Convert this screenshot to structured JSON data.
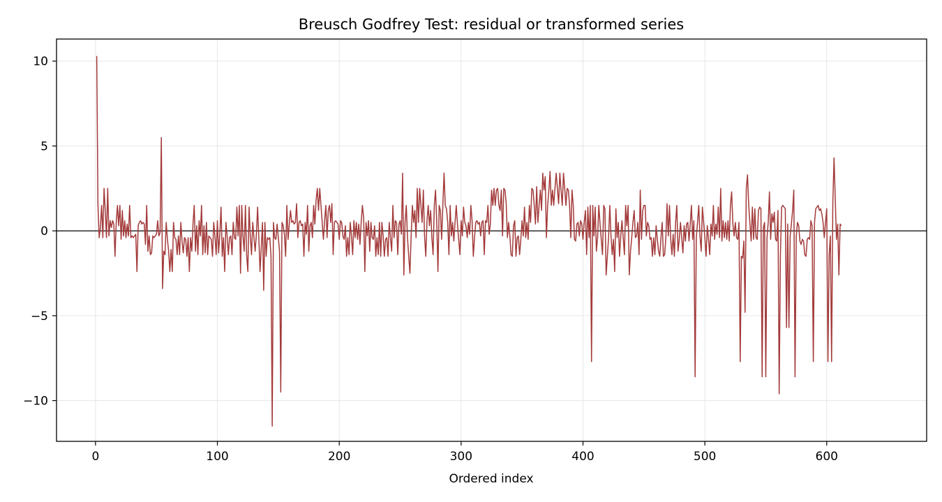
{
  "chart_data": {
    "type": "line",
    "title": "Breusch Godfrey Test: residual or transformed series",
    "xlabel": "Ordered index",
    "ylabel": "",
    "xlim": [
      -32,
      682
    ],
    "ylim": [
      -12.4,
      11.3
    ],
    "x_ticks": [
      0,
      100,
      200,
      300,
      400,
      500,
      600
    ],
    "y_ticks": [
      10,
      5,
      0,
      -5,
      -10
    ],
    "y_tick_labels": [
      "10",
      "5",
      "0",
      "−5",
      "−10"
    ],
    "grid": true,
    "reference_line_y": 0,
    "line_color": "#a33a3a",
    "series": [
      {
        "x_start": 1,
        "x_step": 1,
        "values": [
          10.3,
          1.5,
          -0.4,
          0.2,
          1.5,
          -0.4,
          2.5,
          1.2,
          -0.4,
          2.5,
          -0.3,
          0.6,
          0.2,
          0.6,
          0.4,
          -1.5,
          0.5,
          1.5,
          0.3,
          1.5,
          -0.5,
          1.2,
          -0.3,
          0.6,
          -0.4,
          0.4,
          -0.3,
          1.5,
          -0.4,
          -0.3,
          -0.4,
          -0.3,
          -0.2,
          -2.4,
          0.3,
          0.5,
          0.6,
          0.4,
          0.5,
          0.4,
          -0.8,
          1.5,
          -1.2,
          -0.3,
          -1.4,
          -1.3,
          -0.3,
          -0.4,
          -0.3,
          -0.2,
          0.6,
          -0.3,
          -0.1,
          5.5,
          -3.4,
          -1.2,
          -1.4,
          0.5,
          -0.5,
          -1.2,
          -2.4,
          -1.1,
          -2.4,
          0.5,
          -0.4,
          -0.5,
          -1.4,
          -0.3,
          -1.4,
          0.5,
          -0.6,
          -1.3,
          -0.4,
          -0.5,
          -1.5,
          -0.4,
          -2.4,
          -0.4,
          -1.2,
          0.4,
          1.5,
          -1.2,
          0.3,
          -1.4,
          0.6,
          -0.3,
          1.5,
          -1.4,
          0.3,
          -1.3,
          0.5,
          -1.4,
          -0.3,
          -0.4,
          -0.5,
          -1.5,
          0.5,
          -0.3,
          -1.4,
          0.6,
          -1.3,
          -0.2,
          1.4,
          -1.5,
          -0.4,
          -2.4,
          0.5,
          -0.3,
          -1.4,
          -0.4,
          -0.3,
          -1.4,
          0.5,
          -0.4,
          -0.5,
          1.4,
          -0.3,
          1.5,
          -2.5,
          1.5,
          -0.3,
          -1.2,
          1.5,
          -1.4,
          -2.4,
          1.4,
          -0.3,
          -1.4,
          0.5,
          -0.4,
          -1.2,
          -0.2,
          1.4,
          -0.4,
          -2.4,
          -1.0,
          0.5,
          -3.5,
          0.5,
          -1.5,
          -0.4,
          -0.5,
          -0.4,
          -1.5,
          -11.5,
          0.5,
          -0.4,
          -0.5,
          0.4,
          -0.4,
          -1.2,
          -9.5,
          0.5,
          0.3,
          -0.2,
          -1.5,
          1.5,
          -0.5,
          0.4,
          1.2,
          0.5,
          0.6,
          0.4,
          0.5,
          1.6,
          -0.4,
          0.5,
          0.6,
          0.3,
          0.4,
          -1.5,
          0.5,
          -0.2,
          1.5,
          -1.2,
          0.3,
          0.5,
          -0.4,
          1.5,
          0.4,
          1.8,
          2.5,
          1.2,
          2.5,
          1.5,
          0.5,
          -0.5,
          0.6,
          1.5,
          -0.4,
          1.2,
          1.5,
          0.5,
          1.6,
          -1.4,
          0.5,
          0.6,
          0.5,
          0.4,
          -0.5,
          0.6,
          0.5,
          -0.3,
          -0.5,
          0.3,
          -1.5,
          -0.4,
          -1.4,
          0.5,
          -0.3,
          -1.4,
          0.6,
          -0.4,
          0.5,
          -0.5,
          0.4,
          -0.8,
          0.5,
          1.5,
          0.8,
          -2.4,
          0.5,
          -0.3,
          0.6,
          -1.2,
          0.5,
          -0.4,
          -0.5,
          0.3,
          -1.5,
          -0.4,
          -1.4,
          0.5,
          -1.5,
          0.5,
          -0.3,
          -1.5,
          -0.5,
          -0.4,
          -1.5,
          0.5,
          -0.4,
          -1.2,
          1.5,
          -0.4,
          0.6,
          0.5,
          -1.4,
          0.4,
          0.6,
          -0.2,
          3.4,
          -2.6,
          0.5,
          1.5,
          -0.4,
          -1.5,
          -2.5,
          -0.3,
          1.5,
          0.5,
          1.2,
          -0.4,
          2.5,
          0.5,
          2.5,
          1.5,
          0.5,
          2.4,
          -0.3,
          -1.5,
          0.6,
          1.5,
          0.3,
          1.2,
          -0.4,
          -1.4,
          1.5,
          2.4,
          0.5,
          -2.4,
          1.5,
          1.2,
          -0.5,
          1.5,
          3.4,
          1.5,
          1.3,
          0.5,
          -1.4,
          1.5,
          -0.3,
          0.5,
          -0.6,
          0.5,
          1.5,
          0.4,
          -0.5,
          -1.4,
          0.6,
          -0.3,
          1.4,
          0.5,
          0.3,
          -0.4,
          0.5,
          -0.2,
          1.5,
          0.6,
          -1.5,
          -0.4,
          0.5,
          0.6,
          0.4,
          0.5,
          -0.3,
          0.5,
          0.6,
          -1.4,
          0.6,
          0.5,
          1.5,
          -0.2,
          0.4,
          2.4,
          1.5,
          2.5,
          1.5,
          2.4,
          2.5,
          1.5,
          1.2,
          2.4,
          -0.3,
          2.5,
          2.4,
          1.6,
          -0.4,
          0.5,
          -0.3,
          -1.4,
          -1.5,
          0.3,
          0.6,
          -1.5,
          -0.4,
          -0.3,
          -1.4,
          -0.5,
          0.6,
          -0.3,
          1.4,
          -0.4,
          0.5,
          -0.5,
          1.5,
          0.5,
          2.5,
          2.4,
          1.5,
          0.4,
          2.6,
          0.5,
          1.5,
          2.4,
          1.2,
          3.4,
          2.4,
          3.2,
          -0.4,
          1.5,
          2.4,
          3.5,
          1.5,
          2.4,
          1.5,
          2.5,
          3.4,
          2.5,
          1.6,
          3.4,
          2.4,
          1.5,
          3.4,
          2.5,
          1.5,
          2.5,
          2.4,
          1.5,
          -0.4,
          2.4,
          1.5,
          -0.5,
          -0.6,
          0.4,
          0.5,
          -0.3,
          0.6,
          0.4,
          -0.5,
          0.5,
          1.2,
          -1.4,
          1.4,
          -0.4,
          1.5,
          -7.7,
          1.5,
          -0.3,
          1.4,
          -1.2,
          -0.4,
          1.5,
          0.4,
          -0.5,
          -1.4,
          1.5,
          1.3,
          -2.6,
          -1.5,
          -0.4,
          1.5,
          -0.3,
          -1.4,
          -0.5,
          -2.4,
          1.3,
          -0.4,
          0.5,
          -1.5,
          -0.3,
          0.6,
          -0.4,
          -1.4,
          1.5,
          0.3,
          1.5,
          -2.6,
          -1.2,
          -0.4,
          0.5,
          1.2,
          -0.4,
          -0.3,
          0.5,
          -1.4,
          2.4,
          -0.5,
          1.2,
          1.5,
          1.5,
          -0.3,
          0.5,
          0.3,
          -0.5,
          -0.4,
          -1.5,
          -0.4,
          -1.4,
          0.3,
          -0.5,
          -1.2,
          -1.5,
          -0.4,
          0.5,
          -1.5,
          -1.4,
          -0.4,
          1.6,
          -0.3,
          1.5,
          -0.5,
          -1.4,
          -0.2,
          -1.5,
          0.5,
          1.5,
          -1.2,
          -0.5,
          0.5,
          -0.4,
          -1.3,
          0.3,
          -0.6,
          0.4,
          0.5,
          -0.6,
          0.4,
          1.5,
          -0.5,
          0.6,
          -8.6,
          -0.4,
          0.5,
          1.5,
          -0.3,
          -1.2,
          1.4,
          0.5,
          -0.4,
          -1.5,
          0.3,
          -0.5,
          -1.4,
          0.4,
          -0.3,
          1.5,
          -0.5,
          0.4,
          -0.2,
          1.4,
          -0.4,
          2.5,
          -0.6,
          0.6,
          -0.4,
          0.5,
          -0.5,
          0.6,
          -0.6,
          1.5,
          2.3,
          0.4,
          -0.3,
          0.5,
          -0.4,
          -0.5,
          0.5,
          -7.7,
          -1.5,
          -1.6,
          -0.6,
          -4.8,
          2.5,
          3.3,
          1.5,
          0.4,
          -0.6,
          1.4,
          -0.5,
          1.3,
          -0.4,
          -0.5,
          1.2,
          1.4,
          1.3,
          -8.6,
          0.2,
          0.5,
          -8.6,
          -0.4,
          0.5,
          2.3,
          -0.5,
          1.0,
          0.5,
          1.1,
          -0.5,
          -0.6,
          1.2,
          -9.6,
          -1.4,
          1.4,
          1.5,
          1.4,
          1.3,
          -5.7,
          0.4,
          -5.7,
          -0.3,
          0.4,
          1.2,
          2.4,
          -8.6,
          -0.3,
          0.5,
          0.3,
          -0.6,
          -0.8,
          -0.5,
          -0.6,
          -1.4,
          -1.5,
          -0.5,
          -0.4,
          -0.5,
          0.6,
          0.3,
          -7.7,
          0.5,
          1.3,
          1.4,
          1.5,
          1.2,
          1.3,
          1.0,
          0.5,
          -0.4,
          0.5,
          1.3,
          -7.7,
          -1.4,
          -0.3,
          -7.7,
          1.6,
          4.3,
          1.9,
          -0.5,
          0.4,
          -2.6,
          0.4,
          0.3
        ]
      }
    ]
  }
}
